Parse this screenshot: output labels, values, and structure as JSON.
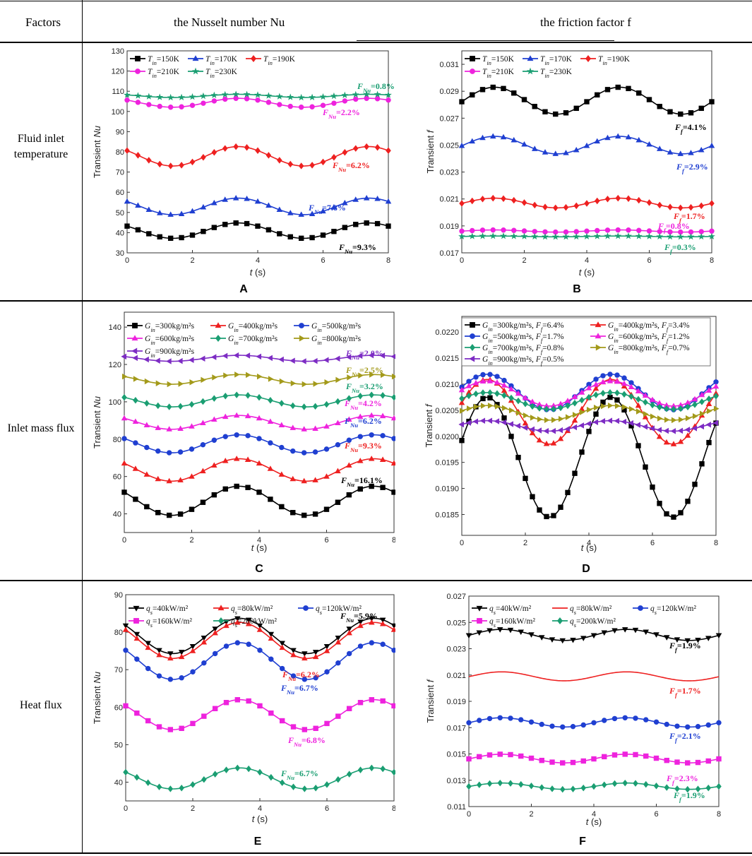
{
  "table": {
    "headers": {
      "factors": "Factors",
      "nu": "the Nusselt number Nu",
      "f": "the friction factor f"
    },
    "rows": [
      "Fluid inlet temperature",
      "Inlet mass flux",
      "Heat flux"
    ]
  },
  "chart_data": [
    {
      "id": "A",
      "type": "line",
      "panel_label": "A",
      "xlabel": "t (s)",
      "ylabel": "Transient Nu",
      "xlim": [
        0,
        8
      ],
      "ylim": [
        30,
        130
      ],
      "xticks": [
        0,
        2,
        4,
        6,
        8
      ],
      "yticks": [
        30,
        40,
        50,
        60,
        70,
        80,
        90,
        100,
        110,
        120,
        130
      ],
      "series": [
        {
          "name": "Tin=150K",
          "color": "#000000",
          "marker": "square",
          "mean": 41,
          "amp": 3.8,
          "phase": 3.4,
          "period": 4
        },
        {
          "name": "Tin=170K",
          "color": "#1f3fd1",
          "marker": "triangle",
          "mean": 53,
          "amp": 4.1,
          "phase": 3.4,
          "period": 4
        },
        {
          "name": "Tin=190K",
          "color": "#ee2020",
          "marker": "diamond",
          "mean": 77.8,
          "amp": 4.8,
          "phase": 3.4,
          "period": 4
        },
        {
          "name": "Tin=210K",
          "color": "#ee22dd",
          "marker": "circle",
          "mean": 104.3,
          "amp": 2.2,
          "phase": 3.4,
          "period": 4
        },
        {
          "name": "Tin=230K",
          "color": "#1a9e72",
          "marker": "star",
          "mean": 107.7,
          "amp": 0.8,
          "phase": 3.4,
          "period": 4
        }
      ],
      "legend_labels": [
        "T_in=150K",
        "T_in=170K",
        "T_in=190K",
        "T_in=210K",
        "T_in=230K"
      ],
      "annotations": [
        {
          "text": "F_Nu=0.8%",
          "color": "#1a9e72"
        },
        {
          "text": "F_Nu=2.2%",
          "color": "#ee22dd"
        },
        {
          "text": "F_Nu=6.2%",
          "color": "#ee2020"
        },
        {
          "text": "F_Nu=7.8%",
          "color": "#1f3fd1"
        },
        {
          "text": "F_Nu=9.3%",
          "color": "#000000"
        }
      ]
    },
    {
      "id": "B",
      "type": "line",
      "panel_label": "B",
      "xlabel": "t (s)",
      "ylabel": "Transient f",
      "xlim": [
        0,
        8
      ],
      "ylim": [
        0.017,
        0.032
      ],
      "xticks": [
        0,
        2,
        4,
        6,
        8
      ],
      "yticks": [
        0.017,
        0.019,
        0.021,
        0.023,
        0.025,
        0.027,
        0.029,
        0.031
      ],
      "series": [
        {
          "name": "Tin=150K",
          "color": "#000000",
          "marker": "square",
          "mean": 0.0283,
          "amp": 0.001,
          "phase": 1.05,
          "period": 4
        },
        {
          "name": "Tin=170K",
          "color": "#1f3fd1",
          "marker": "triangle",
          "mean": 0.025,
          "amp": 0.00065,
          "phase": 1.05,
          "period": 4
        },
        {
          "name": "Tin=190K",
          "color": "#ee2020",
          "marker": "diamond",
          "mean": 0.0207,
          "amp": 0.00036,
          "phase": 1.05,
          "period": 4
        },
        {
          "name": "Tin=210K",
          "color": "#ee22dd",
          "marker": "circle",
          "mean": 0.01862,
          "amp": 8e-05,
          "phase": 1.05,
          "period": 4
        },
        {
          "name": "Tin=230K",
          "color": "#1a9e72",
          "marker": "star",
          "mean": 0.01822,
          "amp": 3e-05,
          "phase": 1.05,
          "period": 4
        }
      ],
      "legend_labels": [
        "T_in=150K",
        "T_in=170K",
        "T_in=190K",
        "T_in=210K",
        "T_in=230K"
      ],
      "annotations": [
        {
          "text": "F_f=4.1%",
          "color": "#000000"
        },
        {
          "text": "F_f=2.9%",
          "color": "#1f3fd1"
        },
        {
          "text": "F_f=1.7%",
          "color": "#ee2020"
        },
        {
          "text": "F_f=0.8%",
          "color": "#ee22dd"
        },
        {
          "text": "F_f=0.3%",
          "color": "#1a9e72"
        }
      ]
    },
    {
      "id": "C",
      "type": "line",
      "panel_label": "C",
      "xlabel": "t (s)",
      "ylabel": "Transient Nu",
      "xlim": [
        0,
        8
      ],
      "ylim": [
        30,
        148
      ],
      "xticks": [
        0,
        2,
        4,
        6,
        8
      ],
      "yticks": [
        40,
        60,
        80,
        100,
        120,
        140
      ],
      "series": [
        {
          "name": "Gin=300kg/m2s",
          "color": "#000000",
          "marker": "square",
          "mean": 47,
          "amp": 7.8,
          "phase": 3.4,
          "period": 4
        },
        {
          "name": "Gin=400kg/m2s",
          "color": "#ee2020",
          "marker": "triangle",
          "mean": 63.5,
          "amp": 6,
          "phase": 3.4,
          "period": 4
        },
        {
          "name": "Gin=500kg/m2s",
          "color": "#1f3fd1",
          "marker": "circle",
          "mean": 77.5,
          "amp": 4.8,
          "phase": 3.4,
          "period": 4
        },
        {
          "name": "Gin=600kg/m2s",
          "color": "#ee22dd",
          "marker": "triangle",
          "mean": 89,
          "amp": 3.7,
          "phase": 3.4,
          "period": 4
        },
        {
          "name": "Gin=700kg/m2s",
          "color": "#1a9e72",
          "marker": "diamond",
          "mean": 100.5,
          "amp": 3.2,
          "phase": 3.4,
          "period": 4
        },
        {
          "name": "Gin=800kg/m2s",
          "color": "#a39a1a",
          "marker": "tri-right",
          "mean": 112,
          "amp": 2.6,
          "phase": 3.4,
          "period": 4
        },
        {
          "name": "Gin=900kg/m2s",
          "color": "#7d2cc4",
          "marker": "tri-left",
          "mean": 123.3,
          "amp": 1.6,
          "phase": 3.4,
          "period": 4
        }
      ],
      "legend_labels": [
        "G_in=300kg/m²s",
        "G_in=400kg/m²s",
        "G_in=500kg/m²s",
        "G_in=600kg/m²s",
        "G_in=700kg/m²s",
        "G_in=800kg/m²s",
        "G_in=900kg/m²s"
      ],
      "annotations": [
        {
          "text": "F_Nu=2.0%",
          "color": "#7d2cc4"
        },
        {
          "text": "F_Nu=2.5%",
          "color": "#a39a1a"
        },
        {
          "text": "F_Nu=3.2%",
          "color": "#1a9e72"
        },
        {
          "text": "F_Nu=4.2%",
          "color": "#ee22dd"
        },
        {
          "text": "F_Nu=6.2%",
          "color": "#1f3fd1"
        },
        {
          "text": "F_Nu=9.3%",
          "color": "#ee2020"
        },
        {
          "text": "F_Nu=16.1%",
          "color": "#000000"
        }
      ]
    },
    {
      "id": "D",
      "type": "line",
      "panel_label": "D",
      "xlabel": "t (s)",
      "ylabel": "Transient f",
      "xlim": [
        0,
        8
      ],
      "ylim": [
        0.0181,
        0.0223
      ],
      "xticks": [
        0,
        2,
        4,
        6,
        8
      ],
      "yticks": [
        0.0185,
        0.019,
        0.0195,
        0.02,
        0.0205,
        0.021,
        0.0215,
        0.022
      ],
      "series": [
        {
          "name": "Gin=300kg/m2s, Ff=6.4%",
          "color": "#000000",
          "marker": "square",
          "mean": 0.0196,
          "amp": 0.00115,
          "phase": 0.8,
          "period": 3.9
        },
        {
          "name": "Gin=400kg/m2s, Ff=3.4%",
          "color": "#ee2020",
          "marker": "triangle",
          "mean": 0.02047,
          "amp": 0.00062,
          "phase": 0.8,
          "period": 3.9
        },
        {
          "name": "Gin=500kg/m2s, Ff=1.7%",
          "color": "#1f3fd1",
          "marker": "circle",
          "mean": 0.02085,
          "amp": 0.00034,
          "phase": 0.8,
          "period": 3.9
        },
        {
          "name": "Gin=600kg/m2s, Ff=1.2%",
          "color": "#ee22dd",
          "marker": "triangle",
          "mean": 0.02082,
          "amp": 0.00024,
          "phase": 0.8,
          "period": 3.9
        },
        {
          "name": "Gin=700kg/m2s, Ff=0.8%",
          "color": "#1a9e72",
          "marker": "diamond",
          "mean": 0.02068,
          "amp": 0.00016,
          "phase": 0.8,
          "period": 3.9
        },
        {
          "name": "Gin=800kg/m2s, Ff=0.7%",
          "color": "#a39a1a",
          "marker": "tri-right",
          "mean": 0.02045,
          "amp": 0.00014,
          "phase": 0.8,
          "period": 3.9
        },
        {
          "name": "Gin=900kg/m2s, Ff=0.5%",
          "color": "#7d2cc4",
          "marker": "tri-left",
          "mean": 0.0202,
          "amp": 0.0001,
          "phase": 0.8,
          "period": 3.9
        }
      ],
      "legend_labels": [
        "G_in=300kg/m²s, F_f=6.4%",
        "G_in=400kg/m²s, F_f=3.4%",
        "G_in=500kg/m²s, F_f=1.7%",
        "G_in=600kg/m²s, F_f=1.2%",
        "G_in=700kg/m²s, F_f=0.8%",
        "G_in=800kg/m²s, F_f=0.7%",
        "G_in=900kg/m²s, F_f=0.5%"
      ],
      "annotations": []
    },
    {
      "id": "E",
      "type": "line",
      "panel_label": "E",
      "xlabel": "t (s)",
      "ylabel": "Transient Nu",
      "xlim": [
        0,
        8
      ],
      "ylim": [
        35,
        90
      ],
      "xticks": [
        0,
        2,
        4,
        6,
        8
      ],
      "yticks": [
        40,
        50,
        60,
        70,
        80,
        90
      ],
      "series": [
        {
          "name": "qs=40kW/m2",
          "color": "#000000",
          "marker": "tri-down",
          "mean": 79,
          "amp": 4.7,
          "phase": 3.4,
          "period": 4
        },
        {
          "name": "qs=80kW/m2",
          "color": "#ee2020",
          "marker": "triangle",
          "mean": 77.8,
          "amp": 4.8,
          "phase": 3.4,
          "period": 4
        },
        {
          "name": "qs=120kW/m2",
          "color": "#1f3fd1",
          "marker": "circle",
          "mean": 72.3,
          "amp": 4.9,
          "phase": 3.4,
          "period": 4
        },
        {
          "name": "qs=160kW/m2",
          "color": "#ee22dd",
          "marker": "square",
          "mean": 58,
          "amp": 4,
          "phase": 3.4,
          "period": 4
        },
        {
          "name": "qs=200kW/m2",
          "color": "#1a9e72",
          "marker": "diamond",
          "mean": 41,
          "amp": 2.8,
          "phase": 3.4,
          "period": 4
        }
      ],
      "legend_labels": [
        "q_s=40kW/m²",
        "q_s=80kW/m²",
        "q_s=120kW/m²",
        "q_s=160kW/m²",
        "q_s=200kW/m²"
      ],
      "annotations": [
        {
          "text": "F_Nu=5.9%",
          "color": "#000000"
        },
        {
          "text": "F_Nu=6.2%",
          "color": "#ee2020"
        },
        {
          "text": "F_Nu=6.7%",
          "color": "#1f3fd1"
        },
        {
          "text": "F_Nu=6.8%",
          "color": "#ee22dd"
        },
        {
          "text": "F_Nu=6.7%",
          "color": "#1a9e72"
        }
      ]
    },
    {
      "id": "F",
      "type": "line",
      "panel_label": "F",
      "xlabel": "t (s)",
      "ylabel": "Transient f",
      "xlim": [
        0,
        8
      ],
      "ylim": [
        0.011,
        0.027
      ],
      "xticks": [
        0,
        2,
        4,
        6,
        8
      ],
      "yticks": [
        0.011,
        0.013,
        0.015,
        0.017,
        0.019,
        0.021,
        0.023,
        0.025,
        0.027
      ],
      "series": [
        {
          "name": "qs=40kW/m2",
          "color": "#000000",
          "marker": "tri-down",
          "mean": 0.02405,
          "amp": 0.00042,
          "phase": 1.05,
          "period": 4
        },
        {
          "name": "qs=80kW/m2",
          "color": "#ee2020",
          "marker": "none",
          "mean": 0.0209,
          "amp": 0.00034,
          "phase": 1.05,
          "period": 4
        },
        {
          "name": "qs=120kW/m2",
          "color": "#1f3fd1",
          "marker": "circle",
          "mean": 0.0174,
          "amp": 0.00035,
          "phase": 1.05,
          "period": 4
        },
        {
          "name": "qs=160kW/m2",
          "color": "#ee22dd",
          "marker": "square",
          "mean": 0.01465,
          "amp": 0.00033,
          "phase": 1.05,
          "period": 4
        },
        {
          "name": "qs=200kW/m2",
          "color": "#1a9e72",
          "marker": "diamond",
          "mean": 0.01255,
          "amp": 0.00024,
          "phase": 1.05,
          "period": 4
        }
      ],
      "legend_labels": [
        "q_s=40kW/m²",
        "q_s=80kW/m²",
        "q_s=120kW/m²",
        "q_s=160kW/m²",
        "q_s=200kW/m²"
      ],
      "annotations": [
        {
          "text": "F_f=1.9%",
          "color": "#000000"
        },
        {
          "text": "F_f=1.7%",
          "color": "#ee2020"
        },
        {
          "text": "F_f=2.1%",
          "color": "#1f3fd1"
        },
        {
          "text": "F_f=2.3%",
          "color": "#ee22dd"
        },
        {
          "text": "F_f=1.9%",
          "color": "#1a9e72"
        }
      ]
    }
  ]
}
